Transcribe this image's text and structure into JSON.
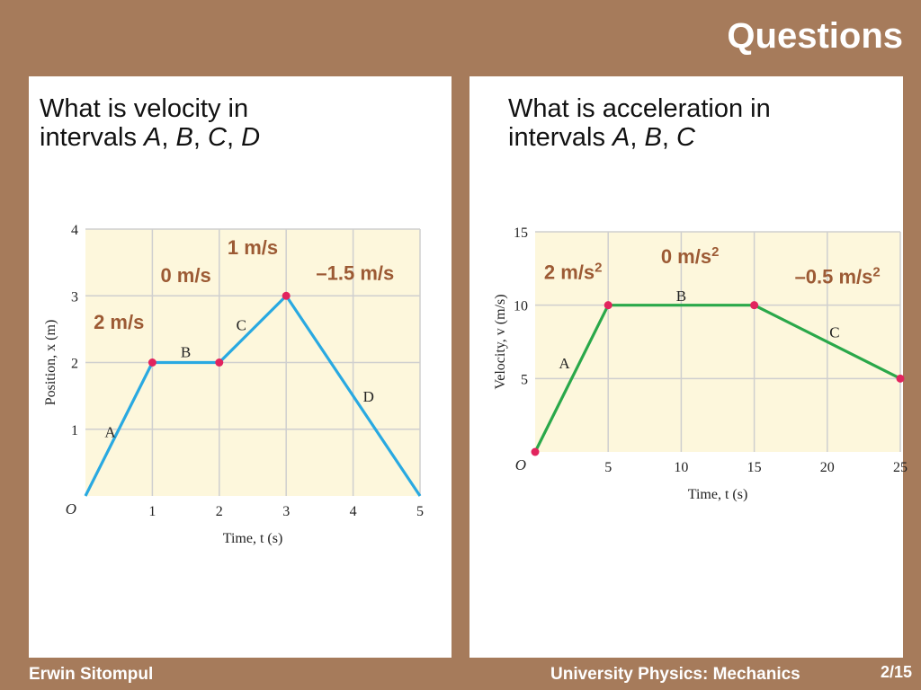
{
  "slide": {
    "title": "Questions",
    "footer_author": "Erwin Sitompul",
    "footer_course": "University Physics: Mechanics",
    "page_number": "2/15"
  },
  "colors": {
    "background": "#a67b5b",
    "plot_bg": "#fdf7dc",
    "grid": "#cfcfcf",
    "velocity_line": "#29a9e1",
    "acceleration_line": "#2aa84a",
    "point": "#e2245e",
    "answer": "#9c5a34"
  },
  "questions": {
    "left": {
      "line1": "What is velocity in",
      "line2_prefix": "intervals ",
      "v1": "A",
      "v2": "B",
      "v3": "C",
      "v4": "D",
      "sep": ", "
    },
    "right": {
      "line1": "What is acceleration in",
      "line2_prefix": "intervals ",
      "v1": "A",
      "v2": "B",
      "v3": "C",
      "sep": ", "
    }
  },
  "chart_data": [
    {
      "type": "line",
      "origin_label": "O",
      "ylabel": "Position, x (m)",
      "xlabel": "Time, t (s)",
      "xlim": [
        0,
        5
      ],
      "ylim": [
        0,
        4
      ],
      "xticks": [
        1,
        2,
        3,
        4,
        5
      ],
      "yticks": [
        1,
        2,
        3,
        4
      ],
      "grid": true,
      "series": [
        {
          "x": [
            0,
            1,
            2,
            3,
            5
          ],
          "y": [
            0,
            2,
            2,
            3,
            0
          ]
        }
      ],
      "markers": [
        {
          "x": 1,
          "y": 2
        },
        {
          "x": 2,
          "y": 2
        },
        {
          "x": 3,
          "y": 3
        }
      ],
      "segment_labels": [
        {
          "text": "A",
          "x": 0.37,
          "y": 0.95
        },
        {
          "text": "B",
          "x": 1.5,
          "y": 2.15
        },
        {
          "text": "C",
          "x": 2.33,
          "y": 2.55
        },
        {
          "text": "D",
          "x": 4.23,
          "y": 1.48
        }
      ],
      "answers": [
        {
          "text": "1 m/s",
          "x": 2.5,
          "y": 3.72
        },
        {
          "text": "0 m/s",
          "x": 1.5,
          "y": 3.3
        },
        {
          "text": "–1.5 m/s",
          "x": 4.03,
          "y": 3.33
        },
        {
          "text": "2 m/s",
          "x": 0.5,
          "y": 2.6
        }
      ]
    },
    {
      "type": "line",
      "origin_label": "O",
      "ylabel": "Velocity, v (m/s)",
      "xlabel": "Time, t (s)",
      "xlim": [
        0,
        25
      ],
      "ylim": [
        0,
        15
      ],
      "xticks": [
        5,
        10,
        15,
        20,
        25
      ],
      "yticks": [
        5,
        10,
        15
      ],
      "grid": true,
      "series": [
        {
          "x": [
            0,
            5,
            15,
            25
          ],
          "y": [
            0,
            10,
            10,
            5
          ]
        }
      ],
      "markers": [
        {
          "x": 0,
          "y": 0
        },
        {
          "x": 5,
          "y": 10
        },
        {
          "x": 15,
          "y": 10
        },
        {
          "x": 25,
          "y": 5
        }
      ],
      "segment_labels": [
        {
          "text": "A",
          "x": 2,
          "y": 6
        },
        {
          "text": "B",
          "x": 10,
          "y": 10.6
        },
        {
          "text": "C",
          "x": 20.5,
          "y": 8.1
        },
        {
          "text": "O",
          "x": 0,
          "y": 0
        }
      ],
      "answers": [
        {
          "text": "2 m/s",
          "sup": "2",
          "x": 2.6,
          "y": 12.2
        },
        {
          "text": "0 m/s",
          "sup": "2",
          "x": 10.6,
          "y": 13.3
        },
        {
          "text": "–0.5 m/s",
          "sup": "2",
          "x": 20.7,
          "y": 11.9
        }
      ]
    }
  ]
}
